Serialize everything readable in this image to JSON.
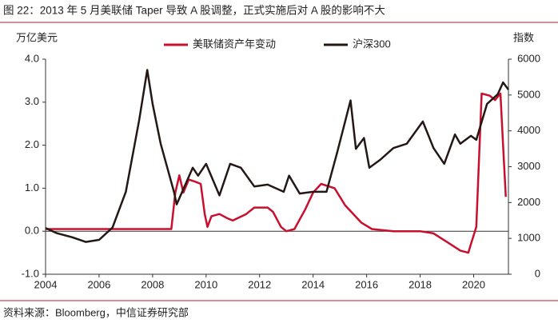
{
  "chart_data": {
    "type": "line",
    "title": "图 22：2013 年 5 月美联储 Taper 导致 A 股调整，正式实施后对 A 股的影响不大",
    "ylabel": "万亿美元",
    "y2label": "指数",
    "source": "资料来源：Bloomberg，中信证券研究部",
    "xlim": [
      2004,
      2021.3
    ],
    "xticks": [
      2004,
      2006,
      2008,
      2010,
      2012,
      2014,
      2016,
      2018,
      2020
    ],
    "ylim": [
      -1,
      4
    ],
    "yticks": [
      {
        "value": -1,
        "label": "-1.0"
      },
      {
        "value": 0,
        "label": "0.0"
      },
      {
        "value": 1,
        "label": "1.0"
      },
      {
        "value": 2,
        "label": "2.0"
      },
      {
        "value": 3,
        "label": "3.0"
      },
      {
        "value": 4,
        "label": "4.0"
      }
    ],
    "y2lim": [
      0,
      6000
    ],
    "y2ticks": [
      0,
      1000,
      2000,
      3000,
      4000,
      5000,
      6000
    ],
    "series": [
      {
        "name": "美联储资产年变动",
        "color": "#c8102e",
        "x": [
          2004,
          2006,
          2008,
          2008.7,
          2008.85,
          2009.0,
          2009.15,
          2009.35,
          2009.6,
          2009.8,
          2009.95,
          2010.05,
          2010.2,
          2010.5,
          2010.8,
          2011.0,
          2011.5,
          2011.8,
          2012.3,
          2012.5,
          2012.8,
          2013.0,
          2013.3,
          2013.7,
          2014.0,
          2014.3,
          2014.8,
          2015.2,
          2015.8,
          2016.2,
          2017,
          2018,
          2018.5,
          2019.0,
          2019.5,
          2019.8,
          2019.9,
          2020.1,
          2020.3,
          2020.6,
          2020.8,
          2021.0,
          2021.1,
          2021.2
        ],
        "values": [
          0.05,
          0.05,
          0.05,
          0.05,
          0.9,
          1.3,
          0.9,
          1.2,
          1.15,
          1.1,
          0.4,
          0.1,
          0.35,
          0.4,
          0.3,
          0.25,
          0.4,
          0.55,
          0.55,
          0.45,
          0.1,
          0,
          0.05,
          0.5,
          0.9,
          1.1,
          1.0,
          0.6,
          0.2,
          0.05,
          0,
          0,
          -0.05,
          -0.25,
          -0.45,
          -0.5,
          -0.3,
          0.1,
          3.2,
          3.15,
          3.05,
          3.2,
          2.0,
          0.8
        ]
      },
      {
        "name": "沪深300",
        "color": "#231815",
        "axis": "y2",
        "x": [
          2004,
          2004.4,
          2005,
          2005.5,
          2006,
          2006.5,
          2007,
          2007.5,
          2007.8,
          2008.0,
          2008.3,
          2008.8,
          2008.9,
          2009.5,
          2009.7,
          2010,
          2010.5,
          2010.9,
          2011.3,
          2011.8,
          2012.3,
          2012.9,
          2013.1,
          2013.5,
          2014,
          2014.5,
          2014.9,
          2015.4,
          2015.6,
          2015.9,
          2016.1,
          2016.5,
          2017,
          2017.5,
          2018.1,
          2018.5,
          2018.9,
          2019.3,
          2019.5,
          2019.9,
          2020.1,
          2020.5,
          2020.9,
          2021.1,
          2021.3
        ],
        "values": [
          1290,
          1150,
          1030,
          900,
          960,
          1300,
          2300,
          4300,
          5700,
          4750,
          3650,
          2300,
          1950,
          2970,
          2750,
          3080,
          2200,
          3080,
          2970,
          2450,
          2500,
          2300,
          2750,
          2250,
          2300,
          2300,
          3400,
          4850,
          3500,
          3800,
          2970,
          3190,
          3520,
          3640,
          4260,
          3520,
          3080,
          3900,
          3640,
          3860,
          3750,
          4750,
          5020,
          5350,
          5150
        ]
      }
    ]
  }
}
